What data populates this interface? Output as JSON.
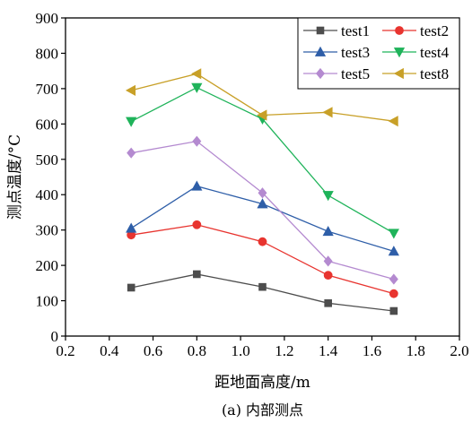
{
  "chart_data": {
    "type": "line",
    "xlabel": "距地面高度/m",
    "ylabel": "测点温度/°C",
    "caption": "(a) 内部测点",
    "xlim": [
      0.2,
      2.0
    ],
    "ylim": [
      0,
      900
    ],
    "x_ticks": [
      "0.2",
      "0.4",
      "0.6",
      "0.8",
      "1.0",
      "1.2",
      "1.4",
      "1.6",
      "1.8",
      "2.0"
    ],
    "y_ticks": [
      "0",
      "100",
      "200",
      "300",
      "400",
      "500",
      "600",
      "700",
      "800",
      "900"
    ],
    "grid": false,
    "legend_position": "top-right",
    "x": [
      0.5,
      0.8,
      1.1,
      1.4,
      1.7
    ],
    "series": [
      {
        "name": "test1",
        "color": "#4d4d4d",
        "marker": "square",
        "values": [
          137,
          175,
          139,
          93,
          71
        ]
      },
      {
        "name": "test2",
        "color": "#e8342f",
        "marker": "circle",
        "values": [
          286,
          315,
          267,
          172,
          120
        ]
      },
      {
        "name": "test3",
        "color": "#2e5ea8",
        "marker": "triangle-up",
        "values": [
          305,
          424,
          374,
          296,
          240
        ]
      },
      {
        "name": "test4",
        "color": "#1fb35a",
        "marker": "triangle-down",
        "values": [
          607,
          703,
          614,
          398,
          291
        ]
      },
      {
        "name": "test5",
        "color": "#b48ad0",
        "marker": "diamond",
        "values": [
          518,
          551,
          405,
          212,
          161
        ]
      },
      {
        "name": "test8",
        "color": "#c8a028",
        "marker": "triangle-left",
        "values": [
          695,
          742,
          625,
          633,
          608
        ]
      }
    ]
  }
}
